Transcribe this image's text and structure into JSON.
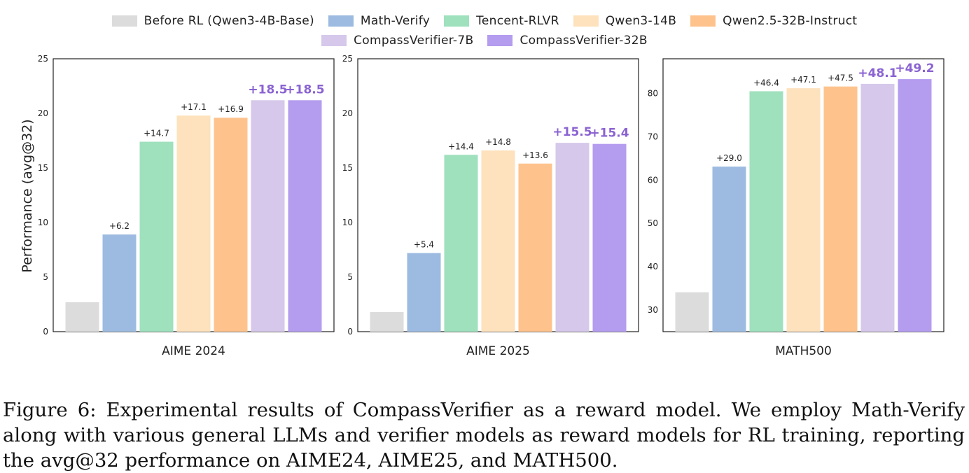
{
  "legend": [
    {
      "label": "Before RL (Qwen3-4B-Base)",
      "color": "#dcdcdc"
    },
    {
      "label": "Math-Verify",
      "color": "#9dbbe0"
    },
    {
      "label": "Tencent-RLVR",
      "color": "#9fe0bd"
    },
    {
      "label": "Qwen3-14B",
      "color": "#fde2bd"
    },
    {
      "label": "Qwen2.5-32B-Instruct",
      "color": "#fec38d"
    },
    {
      "label": "CompassVerifier-7B",
      "color": "#d6c8ea"
    },
    {
      "label": "CompassVerifier-32B",
      "color": "#b49cef"
    }
  ],
  "highlight_color": "#8a63d2",
  "label_color": "#222222",
  "chart_data": [
    {
      "type": "bar",
      "xlabel": "AIME 2024",
      "ylabel": "Performance (avg@32)",
      "ylim": [
        0,
        25
      ],
      "yticks": [
        0,
        5,
        10,
        15,
        20,
        25
      ],
      "categories": [
        "Before RL (Qwen3-4B-Base)",
        "Math-Verify",
        "Tencent-RLVR",
        "Qwen3-14B",
        "Qwen2.5-32B-Instruct",
        "CompassVerifier-7B",
        "CompassVerifier-32B"
      ],
      "values": [
        2.7,
        8.9,
        17.4,
        19.8,
        19.6,
        21.2,
        21.2
      ],
      "data_labels": [
        "",
        "+6.2",
        "+14.7",
        "+17.1",
        "+16.9",
        "+18.5",
        "+18.5"
      ]
    },
    {
      "type": "bar",
      "xlabel": "AIME 2025",
      "ylabel": "",
      "ylim": [
        0,
        25
      ],
      "yticks": [
        0,
        5,
        10,
        15,
        20,
        25
      ],
      "categories": [
        "Before RL (Qwen3-4B-Base)",
        "Math-Verify",
        "Tencent-RLVR",
        "Qwen3-14B",
        "Qwen2.5-32B-Instruct",
        "CompassVerifier-7B",
        "CompassVerifier-32B"
      ],
      "values": [
        1.8,
        7.2,
        16.2,
        16.6,
        15.4,
        17.3,
        17.2
      ],
      "data_labels": [
        "",
        "+5.4",
        "+14.4",
        "+14.8",
        "+13.6",
        "+15.5",
        "+15.4"
      ]
    },
    {
      "type": "bar",
      "xlabel": "MATH500",
      "ylabel": "",
      "ylim": [
        25,
        88
      ],
      "yticks": [
        30,
        40,
        50,
        60,
        70,
        80
      ],
      "categories": [
        "Before RL (Qwen3-4B-Base)",
        "Math-Verify",
        "Tencent-RLVR",
        "Qwen3-14B",
        "Qwen2.5-32B-Instruct",
        "CompassVerifier-7B",
        "CompassVerifier-32B"
      ],
      "values": [
        34.1,
        63.1,
        80.5,
        81.2,
        81.6,
        82.2,
        83.3
      ],
      "data_labels": [
        "",
        "+29.0",
        "+46.4",
        "+47.1",
        "+47.5",
        "+48.1",
        "+49.2"
      ]
    }
  ],
  "caption": "Figure 6: Experimental results of CompassVerifier as a reward model. We employ Math-Verify along with various general LLMs and verifier models as reward models for RL training, reporting the avg@32 performance on AIME24, AIME25, and MATH500."
}
